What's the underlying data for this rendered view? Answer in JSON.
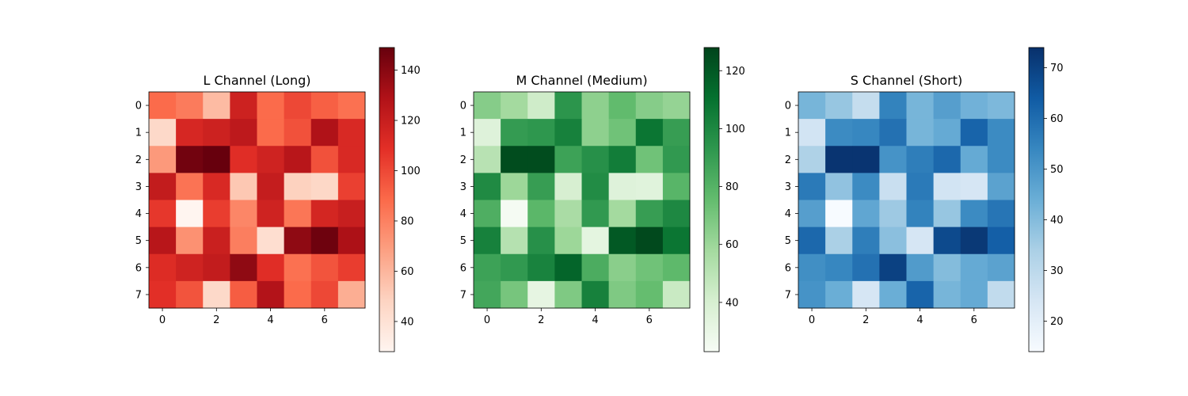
{
  "chart_data": [
    {
      "type": "heatmap",
      "title": "L Channel (Long)",
      "colormap": "Reds",
      "colors": [
        "#fff5f0",
        "#fdd4c2",
        "#fca082",
        "#fb6a4a",
        "#e32f27",
        "#b11218",
        "#67000d"
      ],
      "x_ticks": [
        "0",
        "2",
        "4",
        "6"
      ],
      "y_ticks": [
        "0",
        "1",
        "2",
        "3",
        "4",
        "5",
        "6",
        "7"
      ],
      "colorbar": {
        "min": 28,
        "max": 149,
        "ticks": [
          "40",
          "60",
          "80",
          "100",
          "120",
          "140"
        ]
      },
      "values": [
        [
          88,
          82,
          58,
          118,
          88,
          100,
          92,
          86
        ],
        [
          45,
          114,
          118,
          124,
          88,
          97,
          129,
          113
        ],
        [
          71,
          146,
          149,
          110,
          117,
          126,
          97,
          113
        ],
        [
          122,
          85,
          113,
          53,
          121,
          49,
          46,
          103
        ],
        [
          106,
          28,
          104,
          78,
          117,
          84,
          115,
          120
        ],
        [
          126,
          74,
          119,
          81,
          42,
          138,
          147,
          130
        ],
        [
          111,
          117,
          122,
          138,
          110,
          86,
          96,
          104
        ],
        [
          109,
          96,
          45,
          93,
          128,
          88,
          100,
          63
        ]
      ]
    },
    {
      "type": "heatmap",
      "title": "M Channel (Medium)",
      "colormap": "Greens",
      "colors": [
        "#f7fcf5",
        "#d6efd0",
        "#a4da9f",
        "#63bc6e",
        "#2e974e",
        "#05712f",
        "#00441b"
      ],
      "x_ticks": [
        "0",
        "2",
        "4",
        "6"
      ],
      "y_ticks": [
        "0",
        "1",
        "2",
        "3",
        "4",
        "5",
        "6",
        "7"
      ],
      "colorbar": {
        "min": 23,
        "max": 128,
        "ticks": [
          "40",
          "60",
          "80",
          "100",
          "120"
        ]
      },
      "values": [
        [
          66,
          58,
          43,
          94,
          64,
          76,
          66,
          62
        ],
        [
          36,
          91,
          93,
          103,
          64,
          72,
          108,
          90
        ],
        [
          51,
          125,
          125,
          88,
          96,
          105,
          72,
          92
        ],
        [
          99,
          60,
          90,
          40,
          98,
          36,
          35,
          79
        ],
        [
          82,
          24,
          78,
          56,
          92,
          58,
          90,
          100
        ],
        [
          103,
          52,
          96,
          60,
          33,
          120,
          126,
          108
        ],
        [
          88,
          92,
          102,
          115,
          83,
          65,
          72,
          77
        ],
        [
          86,
          70,
          32,
          68,
          103,
          68,
          75,
          45
        ]
      ]
    },
    {
      "type": "heatmap",
      "title": "S Channel (Short)",
      "colormap": "Blues",
      "colors": [
        "#f7fbff",
        "#d6e6f4",
        "#abd0e6",
        "#6aaed6",
        "#3787c0",
        "#105ba4",
        "#08306b"
      ],
      "x_ticks": [
        "0",
        "2",
        "4",
        "6"
      ],
      "y_ticks": [
        "0",
        "1",
        "2",
        "3",
        "4",
        "5",
        "6",
        "7"
      ],
      "colorbar": {
        "min": 14,
        "max": 74,
        "ticks": [
          "20",
          "30",
          "40",
          "50",
          "60",
          "70"
        ]
      },
      "values": [
        [
          42,
          37,
          28,
          55,
          42,
          48,
          43,
          41
        ],
        [
          25,
          53,
          54,
          59,
          42,
          45,
          62,
          53
        ],
        [
          33,
          73,
          73,
          51,
          56,
          61,
          45,
          53
        ],
        [
          57,
          38,
          53,
          27,
          57,
          25,
          24,
          47
        ],
        [
          48,
          14,
          46,
          36,
          55,
          37,
          53,
          58
        ],
        [
          61,
          34,
          56,
          39,
          24,
          68,
          72,
          63
        ],
        [
          52,
          54,
          59,
          70,
          49,
          40,
          45,
          47
        ],
        [
          51,
          44,
          24,
          44,
          62,
          42,
          45,
          29
        ]
      ]
    }
  ]
}
